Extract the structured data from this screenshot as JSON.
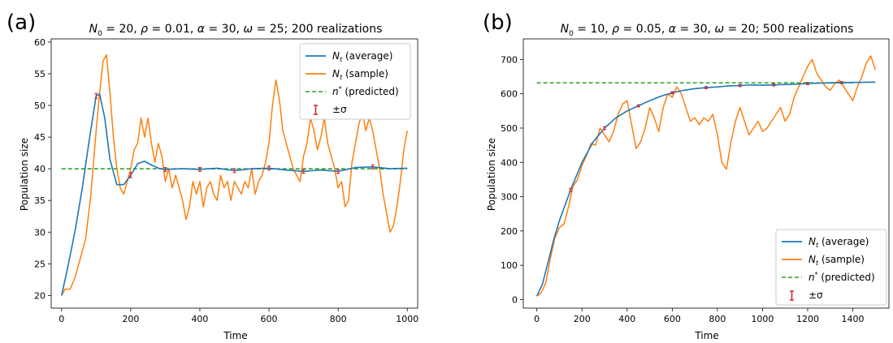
{
  "chart_data": [
    {
      "type": "line",
      "panel_label": "(a)",
      "title": "N0 = 20, ρ = 0.01, α = 30, ω = 25; 200 realizations",
      "title_parts": {
        "n0": "20",
        "rho": "0.01",
        "alpha": "30",
        "omega": "25",
        "suffix": "; 200 realizations"
      },
      "xlabel": "Time",
      "ylabel": "Population size",
      "xlim": [
        -30,
        1030
      ],
      "ylim": [
        18.0,
        60.5
      ],
      "xticks": [
        0,
        200,
        400,
        600,
        800,
        1000
      ],
      "yticks": [
        20,
        25,
        30,
        35,
        40,
        45,
        50,
        55,
        60
      ],
      "legend_position": "top-right",
      "colors": {
        "average": "#1f77b4",
        "sample": "#ff7f0e",
        "predicted": "#2ca02c",
        "errorbar": "#d62728"
      },
      "series": [
        {
          "name": "Nt (average)",
          "label_main": "N",
          "label_sub": "t",
          "label_rest": " (average)",
          "x": [
            0,
            20,
            40,
            60,
            80,
            100,
            110,
            125,
            140,
            160,
            180,
            200,
            220,
            240,
            260,
            280,
            300,
            350,
            400,
            450,
            500,
            550,
            600,
            650,
            700,
            750,
            800,
            850,
            900,
            950,
            1000
          ],
          "y": [
            20,
            25,
            30.5,
            37,
            44.5,
            51.5,
            51.8,
            48,
            41.5,
            37.5,
            37.5,
            39,
            40.8,
            41.2,
            40.6,
            40.1,
            39.9,
            40.0,
            39.9,
            40.1,
            39.7,
            40.0,
            40.1,
            39.8,
            39.6,
            39.8,
            39.6,
            40.2,
            40.3,
            40.0,
            40.1
          ]
        },
        {
          "name": "Nt (sample)",
          "label_main": "N",
          "label_sub": "t",
          "label_rest": " (sample)",
          "x": [
            0,
            10,
            25,
            40,
            55,
            70,
            85,
            100,
            110,
            120,
            130,
            140,
            150,
            160,
            170,
            180,
            190,
            200,
            210,
            220,
            230,
            240,
            250,
            260,
            270,
            280,
            290,
            300,
            310,
            320,
            330,
            340,
            350,
            360,
            370,
            380,
            390,
            400,
            410,
            420,
            430,
            440,
            450,
            460,
            470,
            480,
            490,
            500,
            510,
            520,
            530,
            540,
            550,
            560,
            570,
            580,
            590,
            600,
            610,
            620,
            630,
            640,
            650,
            660,
            670,
            680,
            690,
            700,
            710,
            720,
            730,
            740,
            750,
            760,
            770,
            780,
            790,
            800,
            810,
            820,
            830,
            840,
            850,
            860,
            870,
            880,
            890,
            900,
            910,
            920,
            930,
            940,
            950,
            960,
            970,
            980,
            990,
            1000
          ],
          "y": [
            20,
            21,
            21,
            23,
            26,
            29,
            36,
            46,
            52,
            57,
            58,
            52,
            45,
            40,
            37,
            36,
            38,
            40,
            43,
            44,
            48,
            45,
            48,
            44,
            41,
            44,
            42,
            38,
            40,
            37,
            39,
            37,
            35,
            32,
            34,
            38,
            36,
            38,
            34,
            37,
            38,
            36,
            35,
            39,
            37,
            38,
            35,
            38,
            37,
            36,
            38,
            37,
            40,
            36,
            38,
            39,
            41,
            44,
            50,
            54,
            51,
            46,
            44,
            42,
            40,
            39,
            38,
            42,
            44,
            48,
            46,
            43,
            45,
            48,
            44,
            42,
            40,
            37,
            38,
            34,
            35,
            41,
            44,
            47,
            49,
            46,
            48,
            46,
            43,
            40,
            36,
            33,
            30,
            31,
            34,
            38,
            43,
            46
          ]
        },
        {
          "name": "n* (predicted)",
          "label_main": "n",
          "label_sup": "*",
          "label_rest": " (predicted)",
          "y": 40
        }
      ],
      "errorbar_label": "±σ",
      "errorbars": {
        "x": [
          100,
          200,
          300,
          400,
          500,
          600,
          700,
          800,
          900
        ],
        "sigma": [
          0.4,
          0.4,
          0.3,
          0.3,
          0.3,
          0.3,
          0.3,
          0.3,
          0.3
        ]
      }
    },
    {
      "type": "line",
      "panel_label": "(b)",
      "title": "N0 = 10, ρ = 0.05, α = 30, ω = 20; 500 realizations",
      "title_parts": {
        "n0": "10",
        "rho": "0.05",
        "alpha": "30",
        "omega": "20",
        "suffix": "; 500 realizations"
      },
      "xlabel": "Time",
      "ylabel": "Population size",
      "xlim": [
        -60,
        1560
      ],
      "ylim": [
        -25,
        760
      ],
      "xticks": [
        0,
        200,
        400,
        600,
        800,
        1000,
        1200,
        1400
      ],
      "yticks": [
        0,
        100,
        200,
        300,
        400,
        500,
        600,
        700
      ],
      "legend_position": "bottom-right",
      "colors": {
        "average": "#1f77b4",
        "sample": "#ff7f0e",
        "predicted": "#2ca02c",
        "errorbar": "#d62728"
      },
      "series": [
        {
          "name": "Nt (average)",
          "label_main": "N",
          "label_sub": "t",
          "label_rest": " (average)",
          "x": [
            0,
            25,
            50,
            75,
            100,
            150,
            200,
            250,
            300,
            350,
            400,
            450,
            500,
            550,
            600,
            650,
            700,
            750,
            800,
            850,
            900,
            950,
            1000,
            1050,
            1100,
            1150,
            1200,
            1300,
            1400,
            1500
          ],
          "y": [
            10,
            45,
            110,
            175,
            230,
            320,
            400,
            460,
            500,
            530,
            550,
            565,
            580,
            593,
            603,
            610,
            615,
            618,
            620,
            623,
            624,
            626,
            625,
            626,
            627,
            628,
            630,
            632,
            633,
            634
          ]
        },
        {
          "name": "Nt (sample)",
          "label_main": "N",
          "label_sub": "t",
          "label_rest": " (sample)",
          "x": [
            0,
            20,
            40,
            60,
            80,
            100,
            120,
            140,
            160,
            180,
            200,
            220,
            240,
            260,
            280,
            300,
            320,
            340,
            360,
            380,
            400,
            420,
            440,
            460,
            480,
            500,
            520,
            540,
            560,
            580,
            600,
            620,
            640,
            660,
            680,
            700,
            720,
            740,
            760,
            780,
            800,
            820,
            840,
            860,
            880,
            900,
            920,
            940,
            960,
            980,
            1000,
            1020,
            1040,
            1060,
            1080,
            1100,
            1120,
            1140,
            1160,
            1180,
            1200,
            1220,
            1240,
            1260,
            1280,
            1300,
            1320,
            1340,
            1360,
            1380,
            1400,
            1420,
            1440,
            1460,
            1480,
            1500
          ],
          "y": [
            10,
            20,
            50,
            120,
            180,
            210,
            220,
            270,
            330,
            350,
            390,
            420,
            455,
            450,
            500,
            480,
            460,
            490,
            540,
            570,
            580,
            510,
            440,
            460,
            500,
            560,
            530,
            490,
            560,
            600,
            590,
            620,
            600,
            560,
            520,
            530,
            510,
            530,
            520,
            540,
            480,
            400,
            380,
            460,
            520,
            560,
            520,
            480,
            500,
            520,
            490,
            500,
            520,
            540,
            560,
            520,
            540,
            590,
            620,
            650,
            680,
            700,
            660,
            640,
            620,
            610,
            630,
            640,
            620,
            600,
            580,
            620,
            650,
            690,
            710,
            670
          ]
        },
        {
          "name": "n* (predicted)",
          "label_main": "n",
          "label_sup": "*",
          "label_rest": " (predicted)",
          "y": 632
        }
      ],
      "errorbar_label": "±σ",
      "errorbars": {
        "x": [
          150,
          300,
          450,
          600,
          750,
          900,
          1050,
          1200,
          1350
        ],
        "sigma": [
          4,
          4,
          3,
          3,
          3,
          3,
          3,
          3,
          3
        ]
      }
    }
  ]
}
